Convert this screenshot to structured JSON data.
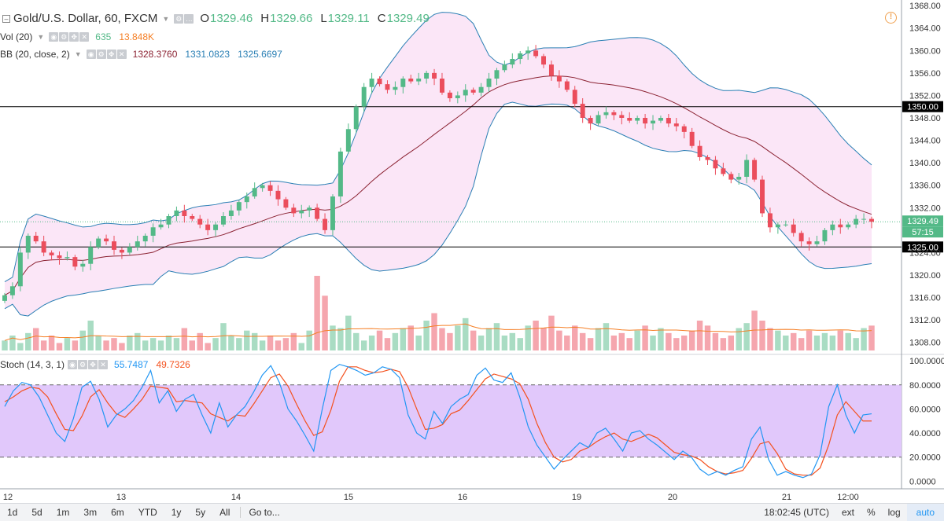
{
  "legend": {
    "symbol": "Gold/U.S. Dollar, 60, FXCM",
    "open_label": "O",
    "open": "1329.46",
    "high_label": "H",
    "high": "1329.66",
    "low_label": "L",
    "low": "1329.11",
    "close_label": "C",
    "close": "1329.49",
    "vol_name": "Vol (20)",
    "vol_value": "635",
    "vol_ma": "13.848K",
    "bb_name": "BB (20, close, 2)",
    "bb_basis": "1328.3760",
    "bb_upper": "1331.0823",
    "bb_lower": "1325.6697",
    "stoch_name": "Stoch (14, 3, 1)",
    "stoch_k": "55.7487",
    "stoch_d": "49.7326"
  },
  "toolbar": {
    "ranges": [
      "1d",
      "5d",
      "1m",
      "3m",
      "6m",
      "YTD",
      "1y",
      "5y",
      "All"
    ],
    "goto": "Go to...",
    "clock": "18:02:45 (UTC)",
    "ext": "ext",
    "percent": "%",
    "log": "log",
    "auto": "auto"
  },
  "colors": {
    "up": "#53b987",
    "down": "#eb4d5c",
    "bb_line": "#2a7fb4",
    "bb_basis": "#8b2232",
    "bb_fill": "#fbe6f7",
    "vol_up": "#a9dcc3",
    "vol_down": "#f5a6ae",
    "vol_ma": "#f57f25",
    "stoch_k": "#2196f3",
    "stoch_d": "#f4511e",
    "stoch_band": "#e1c8fb"
  },
  "chart_data": [
    {
      "type": "candlestick",
      "title": "Gold/U.S. Dollar, 60, FXCM",
      "y_ticks": [
        1308,
        1312,
        1316,
        1320,
        1324,
        1328,
        1332,
        1336,
        1340,
        1344,
        1348,
        1352,
        1356,
        1360,
        1364,
        1368
      ],
      "ylim": [
        1306,
        1369
      ],
      "horizontal_lines": [
        1350.0,
        1325.0
      ],
      "horizontal_line_labels": [
        "1350.00",
        "1325.00"
      ],
      "last_price": 1329.49,
      "last_price_label": "1329.49",
      "countdown_label": "57:15",
      "x_labels": [
        "12",
        "13",
        "14",
        "15",
        "16",
        "19",
        "20",
        "21",
        "12:00"
      ],
      "close_path": [
        1316.4,
        1318.0,
        1324.0,
        1327.0,
        1326.0,
        1324.0,
        1323.5,
        1323.0,
        1323.2,
        1321.5,
        1322.0,
        1325.0,
        1326.5,
        1326.0,
        1324.5,
        1324.0,
        1325.0,
        1326.0,
        1327.0,
        1328.5,
        1329.0,
        1330.5,
        1331.5,
        1330.5,
        1330.0,
        1329.0,
        1328.0,
        1329.0,
        1330.5,
        1331.5,
        1333.0,
        1334.0,
        1335.5,
        1336.0,
        1335.0,
        1333.5,
        1332.0,
        1331.0,
        1331.5,
        1332.0,
        1330.0,
        1328.0,
        1334.0,
        1342.0,
        1346.0,
        1350.0,
        1353.5,
        1355.0,
        1354.0,
        1353.0,
        1353.5,
        1355.0,
        1354.5,
        1355.0,
        1356.0,
        1355.0,
        1352.5,
        1351.5,
        1352.0,
        1353.0,
        1352.5,
        1353.5,
        1355.0,
        1356.5,
        1357.5,
        1358.5,
        1359.5,
        1360.0,
        1359.0,
        1357.5,
        1355.5,
        1354.5,
        1353.0,
        1350.5,
        1348.0,
        1347.0,
        1348.5,
        1349.0,
        1348.5,
        1348.0,
        1347.5,
        1348.0,
        1347.0,
        1347.5,
        1348.0,
        1347.0,
        1346.5,
        1345.5,
        1343.0,
        1341.0,
        1340.5,
        1339.0,
        1338.0,
        1337.0,
        1337.5,
        1340.5,
        1337.0,
        1331.0,
        1328.5,
        1329.0,
        1329.0,
        1327.5,
        1326.0,
        1325.5,
        1326.0,
        1328.0,
        1329.0,
        1328.5,
        1329.0,
        1330.0,
        1330.0,
        1329.5
      ],
      "volume": [
        4,
        6,
        3,
        7,
        9,
        4,
        6,
        3,
        5,
        4,
        8,
        12,
        6,
        4,
        5,
        3,
        6,
        7,
        4,
        5,
        4,
        6,
        5,
        9,
        4,
        7,
        3,
        5,
        11,
        6,
        5,
        8,
        7,
        4,
        6,
        4,
        5,
        7,
        3,
        8,
        30,
        22,
        10,
        9,
        14,
        7,
        4,
        6,
        8,
        5,
        7,
        9,
        10,
        6,
        12,
        15,
        9,
        7,
        10,
        13,
        8,
        6,
        9,
        11,
        6,
        7,
        5,
        10,
        12,
        9,
        14,
        8,
        6,
        10,
        7,
        5,
        9,
        11,
        6,
        7,
        5,
        8,
        10,
        6,
        9,
        7,
        5,
        6,
        8,
        12,
        10,
        7,
        5,
        6,
        9,
        11,
        16,
        12,
        9,
        8,
        6,
        7,
        5,
        8,
        6,
        7,
        6,
        8,
        7,
        5,
        9,
        10,
        7
      ],
      "stoch_k": [
        62,
        75,
        82,
        80,
        70,
        55,
        40,
        33,
        52,
        78,
        83,
        68,
        45,
        55,
        60,
        67,
        78,
        92,
        65,
        75,
        58,
        68,
        72,
        55,
        40,
        65,
        45,
        55,
        62,
        74,
        88,
        96,
        82,
        60,
        50,
        38,
        25,
        60,
        92,
        97,
        95,
        92,
        88,
        90,
        95,
        93,
        86,
        55,
        40,
        35,
        58,
        48,
        62,
        68,
        72,
        88,
        94,
        84,
        82,
        90,
        70,
        45,
        30,
        20,
        10,
        18,
        25,
        32,
        28,
        40,
        44,
        35,
        25,
        40,
        42,
        35,
        30,
        24,
        18,
        25,
        20,
        10,
        5,
        8,
        5,
        9,
        12,
        35,
        45,
        18,
        5,
        8,
        5,
        3,
        6,
        22,
        62,
        80,
        55,
        40,
        55,
        56
      ],
      "stoch_d": [
        66,
        70,
        75,
        78,
        77,
        70,
        56,
        43,
        42,
        54,
        70,
        76,
        65,
        56,
        53,
        60,
        68,
        79,
        78,
        77,
        66,
        67,
        66,
        65,
        56,
        53,
        50,
        55,
        54,
        64,
        75,
        86,
        89,
        79,
        64,
        50,
        38,
        41,
        59,
        83,
        95,
        95,
        92,
        90,
        91,
        93,
        91,
        78,
        60,
        43,
        44,
        47,
        56,
        59,
        67,
        76,
        85,
        89,
        87,
        85,
        81,
        68,
        48,
        32,
        20,
        16,
        18,
        25,
        28,
        33,
        37,
        40,
        35,
        33,
        36,
        39,
        36,
        30,
        24,
        22,
        21,
        18,
        12,
        8,
        6,
        7,
        9,
        19,
        31,
        33,
        23,
        10,
        6,
        5,
        5,
        11,
        30,
        55,
        66,
        58,
        50,
        50
      ],
      "stoch_ylim": [
        -5,
        104
      ],
      "stoch_ticks": [
        0,
        20,
        40,
        60,
        80,
        100
      ],
      "stoch_tick_labels": [
        "0.0000",
        "20.0000",
        "40.0000",
        "60.0000",
        "80.0000",
        "100.0000"
      ],
      "stoch_bands": [
        20,
        80
      ]
    }
  ]
}
